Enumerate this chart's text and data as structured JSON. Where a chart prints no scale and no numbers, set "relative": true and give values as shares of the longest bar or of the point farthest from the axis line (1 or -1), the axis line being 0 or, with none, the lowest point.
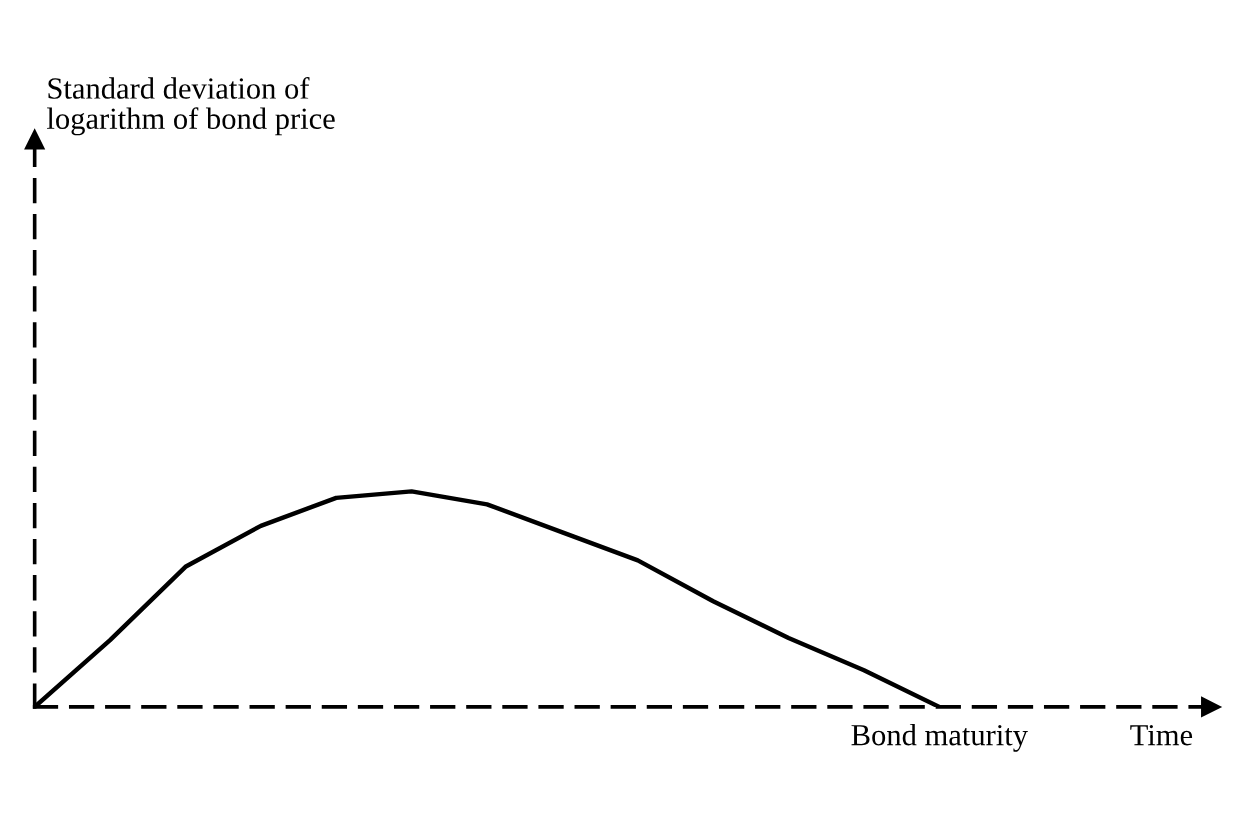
{
  "chart_data": {
    "type": "line",
    "relative": true,
    "categories": [
      null,
      null,
      null,
      null,
      null,
      null,
      null,
      null,
      null,
      null,
      null,
      null,
      null
    ],
    "annotations": [
      "Bond maturity",
      "Standard deviation of\nlogarithm of bond price",
      "Time"
    ],
    "series": [
      {
        "color": "#000000",
        "values": [
          0,
          0.31,
          0.65,
          0.84,
          0.97,
          1.0,
          0.94,
          0.81,
          0.68,
          0.49,
          0.32,
          0.17,
          0
        ]
      }
    ],
    "marker": "none",
    "line_style": "solid",
    "grid": false,
    "legend": false
  }
}
